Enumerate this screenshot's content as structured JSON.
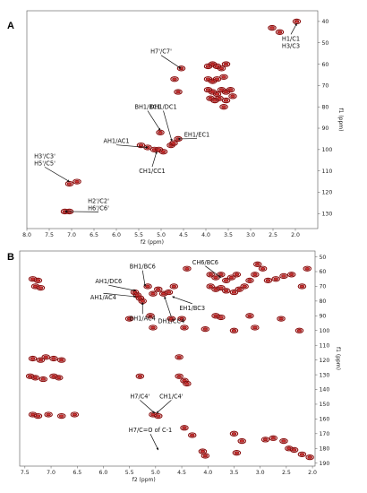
{
  "chart_data": [
    {
      "type": "scatter",
      "panel_label": "A",
      "xlabel": "f2 (ppm)",
      "ylabel": "f1 (ppm)",
      "xlim": [
        8.0,
        1.5
      ],
      "ylim": [
        35,
        137
      ],
      "x_ticks": [
        8.0,
        7.5,
        7.0,
        6.5,
        6.0,
        5.5,
        5.0,
        4.5,
        4.0,
        3.5,
        3.0,
        2.5,
        2.0
      ],
      "y_ticks": [
        40,
        50,
        60,
        70,
        80,
        90,
        100,
        110,
        120,
        130
      ],
      "grid": false,
      "peaks": [
        [
          1.97,
          40
        ],
        [
          2.35,
          45
        ],
        [
          2.52,
          43
        ],
        [
          4.55,
          62
        ],
        [
          4.7,
          67
        ],
        [
          4.62,
          73
        ],
        [
          3.95,
          61
        ],
        [
          3.85,
          60
        ],
        [
          3.75,
          61
        ],
        [
          3.65,
          62
        ],
        [
          3.55,
          60
        ],
        [
          3.95,
          67
        ],
        [
          3.85,
          68
        ],
        [
          3.75,
          67
        ],
        [
          3.6,
          66
        ],
        [
          3.95,
          72
        ],
        [
          3.85,
          73
        ],
        [
          3.75,
          74
        ],
        [
          3.65,
          72
        ],
        [
          3.55,
          73
        ],
        [
          3.45,
          72
        ],
        [
          3.9,
          76
        ],
        [
          3.8,
          77
        ],
        [
          3.7,
          76
        ],
        [
          3.55,
          77
        ],
        [
          3.4,
          75
        ],
        [
          3.6,
          80
        ],
        [
          5.02,
          92
        ],
        [
          4.78,
          98
        ],
        [
          4.72,
          97
        ],
        [
          4.62,
          95
        ],
        [
          5.45,
          98
        ],
        [
          5.3,
          99
        ],
        [
          5.15,
          100
        ],
        [
          5.05,
          100
        ],
        [
          4.95,
          101
        ],
        [
          7.05,
          116
        ],
        [
          6.88,
          115
        ],
        [
          7.15,
          129
        ],
        [
          7.05,
          129
        ]
      ],
      "annotations": [
        {
          "text": "H1/C1",
          "text2": "H3/C3",
          "tx": 2.1,
          "ty": 49,
          "ax": 1.97,
          "ay": 41
        },
        {
          "text": "H7'/C7'",
          "tx": 5.0,
          "ty": 55,
          "ax": 4.56,
          "ay": 62
        },
        {
          "text": "BH1/BC1",
          "tx": 5.3,
          "ty": 81,
          "ax": 5.02,
          "ay": 91
        },
        {
          "text": "DH1/DC1",
          "tx": 4.95,
          "ty": 81,
          "ax": 4.76,
          "ay": 96
        },
        {
          "text": "EH1/EC1",
          "tx": 4.2,
          "ty": 94,
          "ax": 4.62,
          "ay": 95
        },
        {
          "text": "AH1/AC1",
          "tx": 6.0,
          "ty": 97,
          "ax": 5.3,
          "ay": 99
        },
        {
          "text": "CH1/CC1",
          "tx": 5.2,
          "ty": 111,
          "ax": 5.1,
          "ay": 101
        },
        {
          "text": "H3'/C3'",
          "text2": "H5'/C5'",
          "tx": 7.6,
          "ty": 104,
          "ax": 7.05,
          "ay": 115
        },
        {
          "text": "H2'/C2'",
          "text2": "H6'/C6'",
          "tx": 6.4,
          "ty": 125,
          "ax": 7.15,
          "ay": 129
        }
      ]
    },
    {
      "type": "scatter",
      "panel_label": "B",
      "xlabel": "f2 (ppm)",
      "ylabel": "f1 (ppm)",
      "xlim": [
        7.6,
        1.95
      ],
      "ylim": [
        46,
        192
      ],
      "x_ticks": [
        7.5,
        7.0,
        6.5,
        6.0,
        5.5,
        5.0,
        4.5,
        4.0,
        3.5,
        3.0,
        2.5,
        2.0
      ],
      "y_ticks": [
        50,
        60,
        70,
        80,
        90,
        100,
        110,
        120,
        130,
        140,
        150,
        160,
        170,
        180,
        190
      ],
      "grid": false,
      "peaks": [
        [
          7.35,
          65
        ],
        [
          7.25,
          66
        ],
        [
          7.3,
          70
        ],
        [
          7.2,
          71
        ],
        [
          5.4,
          74
        ],
        [
          5.35,
          76
        ],
        [
          5.3,
          78
        ],
        [
          5.25,
          80
        ],
        [
          5.15,
          70
        ],
        [
          5.05,
          75
        ],
        [
          4.95,
          72
        ],
        [
          4.85,
          75
        ],
        [
          4.75,
          74
        ],
        [
          4.65,
          70
        ],
        [
          3.95,
          62
        ],
        [
          3.85,
          64
        ],
        [
          3.75,
          62
        ],
        [
          3.65,
          66
        ],
        [
          3.55,
          64
        ],
        [
          3.45,
          62
        ],
        [
          3.95,
          70
        ],
        [
          3.85,
          72
        ],
        [
          3.75,
          71
        ],
        [
          3.65,
          73
        ],
        [
          3.5,
          74
        ],
        [
          3.4,
          72
        ],
        [
          3.3,
          70
        ],
        [
          3.2,
          66
        ],
        [
          3.1,
          62
        ],
        [
          2.95,
          58
        ],
        [
          2.85,
          66
        ],
        [
          2.7,
          65
        ],
        [
          2.55,
          63
        ],
        [
          2.4,
          62
        ],
        [
          2.2,
          70
        ],
        [
          2.1,
          58
        ],
        [
          4.4,
          58
        ],
        [
          3.05,
          55
        ],
        [
          5.5,
          92
        ],
        [
          5.1,
          90
        ],
        [
          4.7,
          92
        ],
        [
          4.5,
          92
        ],
        [
          3.85,
          90
        ],
        [
          3.75,
          91
        ],
        [
          3.2,
          90
        ],
        [
          2.6,
          92
        ],
        [
          5.05,
          98
        ],
        [
          4.45,
          98
        ],
        [
          4.05,
          99
        ],
        [
          3.5,
          100
        ],
        [
          3.1,
          98
        ],
        [
          2.25,
          100
        ],
        [
          7.35,
          119
        ],
        [
          7.2,
          120
        ],
        [
          7.1,
          118
        ],
        [
          6.95,
          119
        ],
        [
          6.8,
          120
        ],
        [
          4.55,
          118
        ],
        [
          7.4,
          131
        ],
        [
          7.3,
          132
        ],
        [
          7.15,
          133
        ],
        [
          6.95,
          131
        ],
        [
          6.85,
          132
        ],
        [
          5.3,
          131
        ],
        [
          4.55,
          131
        ],
        [
          4.45,
          134
        ],
        [
          4.4,
          136
        ],
        [
          7.35,
          157
        ],
        [
          7.25,
          158
        ],
        [
          7.05,
          157
        ],
        [
          6.8,
          158
        ],
        [
          5.05,
          157
        ],
        [
          4.95,
          158
        ],
        [
          6.55,
          157
        ],
        [
          4.45,
          166
        ],
        [
          4.3,
          171
        ],
        [
          3.5,
          170
        ],
        [
          3.35,
          175
        ],
        [
          2.9,
          174
        ],
        [
          2.75,
          173
        ],
        [
          2.55,
          175
        ],
        [
          4.1,
          182
        ],
        [
          4.05,
          185
        ],
        [
          3.45,
          183
        ],
        [
          2.45,
          180
        ],
        [
          2.35,
          181
        ],
        [
          2.2,
          184
        ],
        [
          2.05,
          186
        ]
      ],
      "annotations": [
        {
          "text": "BH1/BC6",
          "tx": 5.25,
          "ty": 58,
          "ax": 5.2,
          "ay": 70
        },
        {
          "text": "CH6/BC6",
          "tx": 4.05,
          "ty": 55,
          "ax": 3.75,
          "ay": 64
        },
        {
          "text": "AH1/DC6",
          "tx": 5.9,
          "ty": 68,
          "ax": 5.38,
          "ay": 73
        },
        {
          "text": "AH1/AC4",
          "tx": 6.0,
          "ty": 79,
          "ax": 5.38,
          "ay": 77
        },
        {
          "text": "EH1/BC3",
          "tx": 4.3,
          "ty": 86,
          "ax": 4.68,
          "ay": 77
        },
        {
          "text": "BH1/AC4",
          "tx": 5.25,
          "ty": 93,
          "ax": 5.25,
          "ay": 81
        },
        {
          "text": "DH1/CC4",
          "tx": 4.7,
          "ty": 95,
          "ax": 4.83,
          "ay": 77
        },
        {
          "text": "H7/C4'",
          "tx": 5.3,
          "ty": 146,
          "ax": 5.02,
          "ay": 156
        },
        {
          "text": "CH1/C4'",
          "tx": 4.7,
          "ty": 146,
          "ax": 4.98,
          "ay": 156
        },
        {
          "text": "H7/C=O of C-1",
          "tx": 5.1,
          "ty": 169,
          "ax": 4.95,
          "ay": 181
        }
      ]
    }
  ],
  "colors": {
    "peak_outer": "#8b0d0d",
    "peak_inner": "#cc3333",
    "axis": "#555555"
  }
}
